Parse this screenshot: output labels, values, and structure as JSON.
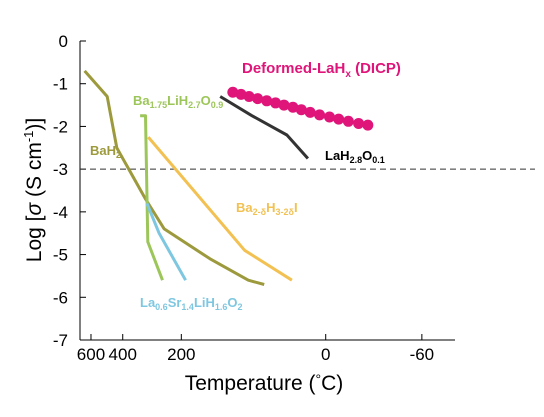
{
  "chart_data": {
    "type": "line",
    "title": "",
    "xlabel": "Temperature (°C)",
    "ylabel": "Log [σ (S cm⁻¹)]",
    "ylim": [
      -7,
      0
    ],
    "x_scale": "reciprocal-temperature",
    "x_ticks": [
      "600",
      "400",
      "200",
      "0",
      "-60"
    ],
    "x_tick_values": [
      600,
      400,
      200,
      0,
      -60
    ],
    "y_ticks": [
      "0",
      "-1",
      "-2",
      "-3",
      "-4",
      "-5",
      "-6",
      "-7"
    ],
    "y_tick_values": [
      0,
      -1,
      -2,
      -3,
      -4,
      -5,
      -6,
      -7
    ],
    "grid": false,
    "reference_line": {
      "y": -3,
      "style": "dashed",
      "color": "#333333"
    },
    "series": [
      {
        "name": "Deformed-LaHx (DICP)",
        "color": "#e0157a",
        "markers": true,
        "points": [
          [
            102,
            -1.2
          ],
          [
            90,
            -1.25
          ],
          [
            79,
            -1.3
          ],
          [
            68,
            -1.35
          ],
          [
            57,
            -1.4
          ],
          [
            47,
            -1.45
          ],
          [
            38,
            -1.5
          ],
          [
            29,
            -1.55
          ],
          [
            21,
            -1.61
          ],
          [
            13,
            -1.67
          ],
          [
            5,
            -1.73
          ],
          [
            -3,
            -1.78
          ],
          [
            -10,
            -1.83
          ],
          [
            -17,
            -1.88
          ],
          [
            -24,
            -1.93
          ],
          [
            -30,
            -1.97
          ]
        ]
      },
      {
        "name": "LaH2.8O0.1",
        "color": "#333333",
        "markers": false,
        "points": [
          [
            122,
            -1.3
          ],
          [
            75,
            -1.75
          ],
          [
            35,
            -2.2
          ],
          [
            15,
            -2.75
          ]
        ]
      },
      {
        "name": "BaH2",
        "color": "#9c9a3c",
        "markers": false,
        "points": [
          [
            655,
            -0.7
          ],
          [
            485,
            -1.3
          ],
          [
            430,
            -2.5
          ],
          [
            305,
            -3.7
          ],
          [
            245,
            -4.4
          ],
          [
            140,
            -5.1
          ],
          [
            80,
            -5.6
          ],
          [
            60,
            -5.7
          ]
        ]
      },
      {
        "name": "Ba1.75LiH2.7O0.9",
        "color": "#9dc65a",
        "markers": false,
        "points": [
          [
            325,
            -1.75
          ],
          [
            305,
            -1.75
          ],
          [
            297,
            -4.7
          ],
          [
            250,
            -5.6
          ]
        ]
      },
      {
        "name": "Ba2-δH3-2δI",
        "color": "#f2c152",
        "markers": false,
        "points": [
          [
            295,
            -2.25
          ],
          [
            85,
            -4.9
          ],
          [
            30,
            -5.6
          ]
        ]
      },
      {
        "name": "La0.6Sr1.4LiH1.6O2",
        "color": "#7ec7e0",
        "markers": false,
        "points": [
          [
            300,
            -3.8
          ],
          [
            260,
            -4.5
          ],
          [
            190,
            -5.6
          ]
        ]
      }
    ]
  },
  "annotations": {
    "deformed_base": "Deformed-LaH",
    "deformed_sub": "x",
    "deformed_tail": " (DICP)",
    "la_h": "LaH",
    "la_h_sub": "2.8",
    "la_o": "O",
    "la_o_sub": "0.1",
    "ba175": {
      "t1": "Ba",
      "s1": "1.75",
      "t2": "LiH",
      "s2": "2.7",
      "t3": "O",
      "s3": "0.9"
    },
    "bah2": {
      "t1": "BaH",
      "s1": "2"
    },
    "ba2": {
      "t1": "Ba",
      "s1": "2-δ",
      "t2": "H",
      "s2": "3-2δ",
      "t3": "I"
    },
    "lasr": {
      "t1": "La",
      "s1": "0.6",
      "t2": "Sr",
      "s2": "1.4",
      "t3": "LiH",
      "s3": "1.6",
      "t4": "O",
      "s4": "2"
    }
  },
  "axis_titles": {
    "y_prefix": "Log [",
    "y_sigma": "σ",
    "y_mid": " (S cm",
    "y_sup": "-1",
    "y_suffix": ")]",
    "x_main": "Temperature (",
    "x_deg": "°",
    "x_unit": "C)"
  }
}
